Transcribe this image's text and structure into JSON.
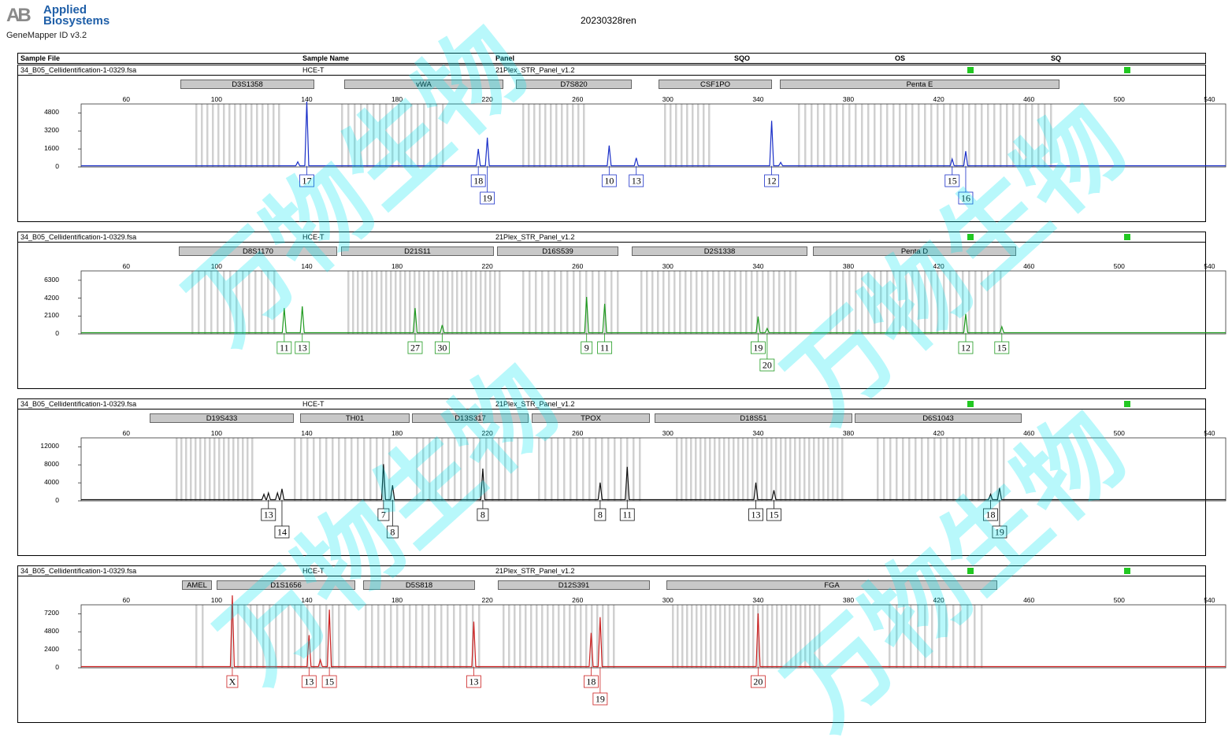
{
  "header": {
    "logo_mark": "AB",
    "logo_brand_1": "Applied",
    "logo_brand_2": "Biosystems",
    "software": "GeneMapper ID v3.2",
    "run_title": "20230328ren"
  },
  "columns": {
    "sample_file": "Sample File",
    "sample_name": "Sample Name",
    "panel": "Panel",
    "sqo": "SQO",
    "os": "OS",
    "sq": "SQ"
  },
  "colors": {
    "blue": "#1a2fc8",
    "green": "#1f9a1f",
    "black": "#111111",
    "red": "#cc2020",
    "status_ok": "#22c822",
    "watermark": "#00e6f0"
  },
  "watermark_text": "万物生物",
  "chart_data": [
    {
      "type": "line",
      "dye": "blue",
      "sample_file": "34_B05_Cellidentification-1-0329.fsa",
      "sample_name": "HCE-T",
      "panel": "21Plex_STR_Panel_v1.2",
      "x_ticks": [
        "60",
        "100",
        "140",
        "180",
        "220",
        "260",
        "300",
        "340",
        "380",
        "420",
        "460",
        "500",
        "540"
      ],
      "y_ticks": [
        "4800",
        "3200",
        "1600",
        "0"
      ],
      "ylim": [
        0,
        5600
      ],
      "markers": [
        "D3S1358",
        "vWA",
        "D7S820",
        "CSF1PO",
        "Penta E"
      ],
      "peaks": [
        {
          "x": 136,
          "y": 350
        },
        {
          "x": 140,
          "y": 5700
        },
        {
          "x": 216,
          "y": 1500
        },
        {
          "x": 220,
          "y": 2500
        },
        {
          "x": 274,
          "y": 1800
        },
        {
          "x": 286,
          "y": 700
        },
        {
          "x": 346,
          "y": 4000
        },
        {
          "x": 350,
          "y": 300
        },
        {
          "x": 426,
          "y": 600
        },
        {
          "x": 432,
          "y": 1300
        }
      ],
      "alleles": [
        {
          "label": "17",
          "x": 140,
          "row": 0
        },
        {
          "label": "18",
          "x": 216,
          "row": 0
        },
        {
          "label": "19",
          "x": 220,
          "row": 1
        },
        {
          "label": "10",
          "x": 274,
          "row": 0
        },
        {
          "label": "13",
          "x": 286,
          "row": 0
        },
        {
          "label": "12",
          "x": 346,
          "row": 0
        },
        {
          "label": "15",
          "x": 426,
          "row": 0
        },
        {
          "label": "16",
          "x": 432,
          "row": 1
        }
      ]
    },
    {
      "type": "line",
      "dye": "green",
      "sample_file": "34_B05_Cellidentification-1-0329.fsa",
      "sample_name": "HCE-T",
      "panel": "21Plex_STR_Panel_v1.2",
      "x_ticks": [
        "60",
        "100",
        "140",
        "180",
        "220",
        "260",
        "300",
        "340",
        "380",
        "420",
        "460",
        "500",
        "540"
      ],
      "y_ticks": [
        "6300",
        "4200",
        "2100",
        "0"
      ],
      "ylim": [
        0,
        7400
      ],
      "markers": [
        "D8S1170",
        "D21S11",
        "D16S539",
        "D2S1338",
        "Penta D"
      ],
      "peaks": [
        {
          "x": 130,
          "y": 2900
        },
        {
          "x": 138,
          "y": 3100
        },
        {
          "x": 188,
          "y": 2900
        },
        {
          "x": 200,
          "y": 900
        },
        {
          "x": 264,
          "y": 4200
        },
        {
          "x": 272,
          "y": 3400
        },
        {
          "x": 340,
          "y": 1900
        },
        {
          "x": 344,
          "y": 500
        },
        {
          "x": 432,
          "y": 2200
        },
        {
          "x": 448,
          "y": 700
        }
      ],
      "alleles": [
        {
          "label": "11",
          "x": 130,
          "row": 0
        },
        {
          "label": "13",
          "x": 138,
          "row": 0
        },
        {
          "label": "27",
          "x": 188,
          "row": 0
        },
        {
          "label": "30",
          "x": 200,
          "row": 0
        },
        {
          "label": "9",
          "x": 264,
          "row": 0
        },
        {
          "label": "11",
          "x": 272,
          "row": 0
        },
        {
          "label": "19",
          "x": 340,
          "row": 0
        },
        {
          "label": "20",
          "x": 344,
          "row": 1
        },
        {
          "label": "12",
          "x": 432,
          "row": 0
        },
        {
          "label": "15",
          "x": 448,
          "row": 0
        }
      ]
    },
    {
      "type": "line",
      "dye": "black",
      "sample_file": "34_B05_Cellidentification-1-0329.fsa",
      "sample_name": "HCE-T",
      "panel": "21Plex_STR_Panel_v1.2",
      "x_ticks": [
        "60",
        "100",
        "140",
        "180",
        "220",
        "260",
        "300",
        "340",
        "380",
        "420",
        "460",
        "500",
        "540"
      ],
      "y_ticks": [
        "12000",
        "8000",
        "4000",
        "0"
      ],
      "ylim": [
        0,
        14000
      ],
      "markers": [
        "D19S433",
        "TH01",
        "D13S317",
        "TPOX",
        "D18S51",
        "D6S1043"
      ],
      "peaks": [
        {
          "x": 121,
          "y": 1200
        },
        {
          "x": 123,
          "y": 1500
        },
        {
          "x": 127,
          "y": 1500
        },
        {
          "x": 129,
          "y": 2400
        },
        {
          "x": 174,
          "y": 7900
        },
        {
          "x": 178,
          "y": 3200
        },
        {
          "x": 218,
          "y": 6900
        },
        {
          "x": 270,
          "y": 3800
        },
        {
          "x": 282,
          "y": 7300
        },
        {
          "x": 339,
          "y": 3800
        },
        {
          "x": 347,
          "y": 2100
        },
        {
          "x": 443,
          "y": 1200
        },
        {
          "x": 447,
          "y": 2600
        }
      ],
      "alleles": [
        {
          "label": "13",
          "x": 123,
          "row": 0
        },
        {
          "label": "14",
          "x": 129,
          "row": 1
        },
        {
          "label": "7",
          "x": 174,
          "row": 0
        },
        {
          "label": "8",
          "x": 178,
          "row": 1
        },
        {
          "label": "8",
          "x": 218,
          "row": 0
        },
        {
          "label": "8",
          "x": 270,
          "row": 0
        },
        {
          "label": "11",
          "x": 282,
          "row": 0
        },
        {
          "label": "13",
          "x": 339,
          "row": 0
        },
        {
          "label": "15",
          "x": 347,
          "row": 0
        },
        {
          "label": "18",
          "x": 443,
          "row": 0
        },
        {
          "label": "19",
          "x": 447,
          "row": 1
        }
      ]
    },
    {
      "type": "line",
      "dye": "red",
      "sample_file": "34_B05_Cellidentification-1-0329.fsa",
      "sample_name": "HCE-T",
      "panel": "21Plex_STR_Panel_v1.2",
      "x_ticks": [
        "60",
        "100",
        "140",
        "180",
        "220",
        "260",
        "300",
        "340",
        "380",
        "420",
        "460",
        "500",
        "540"
      ],
      "y_ticks": [
        "7200",
        "4800",
        "2400",
        "0"
      ],
      "ylim": [
        0,
        8400
      ],
      "markers": [
        "AMEL",
        "D1S1656",
        "D5S818",
        "D12S391",
        "FGA"
      ],
      "peaks": [
        {
          "x": 107,
          "y": 9600
        },
        {
          "x": 141,
          "y": 4200
        },
        {
          "x": 146,
          "y": 900
        },
        {
          "x": 150,
          "y": 7600
        },
        {
          "x": 214,
          "y": 6000
        },
        {
          "x": 266,
          "y": 4500
        },
        {
          "x": 270,
          "y": 6600
        },
        {
          "x": 340,
          "y": 7100
        }
      ],
      "alleles": [
        {
          "label": "X",
          "x": 107,
          "row": 0
        },
        {
          "label": "13",
          "x": 141,
          "row": 0
        },
        {
          "label": "15",
          "x": 150,
          "row": 0
        },
        {
          "label": "13",
          "x": 214,
          "row": 0
        },
        {
          "label": "18",
          "x": 266,
          "row": 0
        },
        {
          "label": "19",
          "x": 270,
          "row": 1
        },
        {
          "label": "20",
          "x": 340,
          "row": 0
        }
      ]
    }
  ]
}
